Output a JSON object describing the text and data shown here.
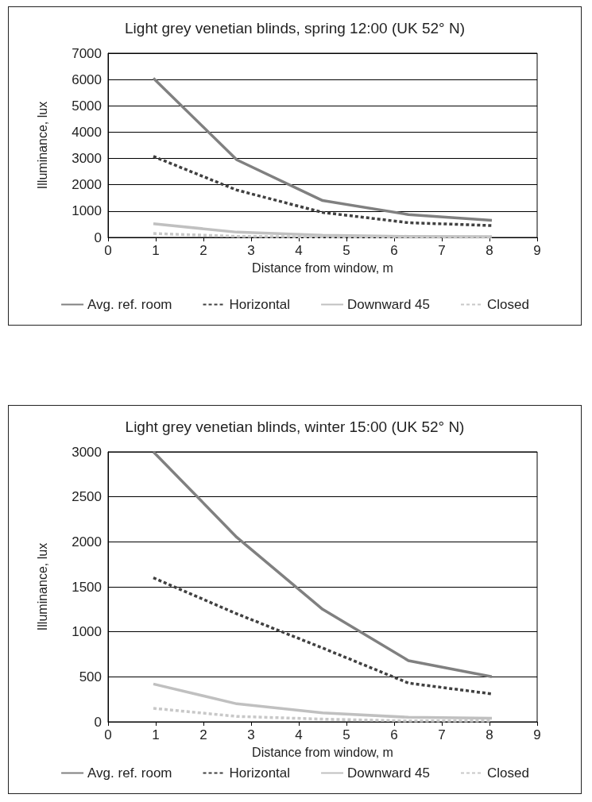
{
  "chart_data": [
    {
      "type": "line",
      "title": "Light grey venetian blinds, spring 12:00 (UK 52° N)",
      "xlabel": "Distance from window, m",
      "ylabel": "Illuminance, lux",
      "x": [
        0.95,
        2.7,
        4.5,
        6.3,
        8.05
      ],
      "xlim": [
        0,
        9
      ],
      "xticks": [
        0,
        1,
        2,
        3,
        4,
        5,
        6,
        7,
        8,
        9
      ],
      "ylim": [
        0,
        7000
      ],
      "yticks": [
        0,
        1000,
        2000,
        3000,
        4000,
        5000,
        6000,
        7000
      ],
      "grid": "y",
      "legend": "bottom",
      "marker": "none",
      "series": [
        {
          "name": "Avg. ref. room",
          "color": "#808080",
          "line_style": "solid",
          "values": [
            6050,
            2950,
            1400,
            870,
            650
          ]
        },
        {
          "name": "Horizontal",
          "color": "#404040",
          "line_style": "dashed",
          "values": [
            3080,
            1800,
            950,
            560,
            450
          ]
        },
        {
          "name": "Downward 45",
          "color": "#c0c0c0",
          "line_style": "solid",
          "values": [
            520,
            200,
            80,
            40,
            30
          ]
        },
        {
          "name": "Closed",
          "color": "#c8c8c8",
          "line_style": "dashed",
          "values": [
            150,
            40,
            20,
            10,
            10
          ]
        }
      ]
    },
    {
      "type": "line",
      "title": "Light grey venetian blinds, winter 15:00 (UK 52° N)",
      "xlabel": "Distance from window, m",
      "ylabel": "Illuminance, lux",
      "x": [
        0.95,
        2.7,
        4.5,
        6.3,
        8.05
      ],
      "xlim": [
        0,
        9
      ],
      "xticks": [
        0,
        1,
        2,
        3,
        4,
        5,
        6,
        7,
        8,
        9
      ],
      "ylim": [
        0,
        3000
      ],
      "yticks": [
        0,
        500,
        1000,
        1500,
        2000,
        2500,
        3000
      ],
      "grid": "y",
      "legend": "bottom",
      "marker": "none",
      "series": [
        {
          "name": "Avg. ref. room",
          "color": "#808080",
          "line_style": "solid",
          "values": [
            3000,
            2050,
            1250,
            680,
            500
          ]
        },
        {
          "name": "Horizontal",
          "color": "#404040",
          "line_style": "dashed",
          "values": [
            1600,
            1200,
            820,
            430,
            310
          ]
        },
        {
          "name": "Downward 45",
          "color": "#c0c0c0",
          "line_style": "solid",
          "values": [
            420,
            200,
            100,
            50,
            40
          ]
        },
        {
          "name": "Closed",
          "color": "#c8c8c8",
          "line_style": "dashed",
          "values": [
            150,
            60,
            30,
            10,
            10
          ]
        }
      ]
    }
  ]
}
